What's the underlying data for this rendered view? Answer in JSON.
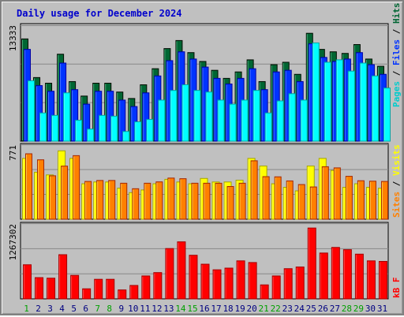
{
  "chart_data": {
    "type": "bar",
    "title": "Daily usage for December 2024",
    "categories": [
      "1",
      "2",
      "3",
      "4",
      "5",
      "6",
      "7",
      "8",
      "9",
      "10",
      "11",
      "12",
      "13",
      "14",
      "15",
      "16",
      "17",
      "18",
      "19",
      "20",
      "21",
      "22",
      "23",
      "24",
      "25",
      "26",
      "27",
      "28",
      "29",
      "30",
      "31"
    ],
    "weekend_days": [
      "1",
      "7",
      "8",
      "14",
      "15",
      "21",
      "22",
      "28",
      "29"
    ],
    "panels": [
      {
        "id": "hits_files_pages",
        "max_label": "13333",
        "ylim": [
          0,
          14400
        ],
        "series": [
          {
            "name": "Hits",
            "color": "#006633",
            "values": [
              12700,
              7900,
              7200,
              10800,
              7400,
              5600,
              7200,
              7200,
              6100,
              5300,
              7000,
              9000,
              11500,
              12500,
              11000,
              9900,
              8800,
              7800,
              8600,
              10100,
              7400,
              9500,
              9800,
              8300,
              13400,
              11400,
              11100,
              10900,
              12000,
              10200,
              9300
            ]
          },
          {
            "name": "Files",
            "color": "#0033ff",
            "values": [
              11400,
              6900,
              6200,
              9700,
              6400,
              4600,
              6200,
              6200,
              5100,
              4300,
              6000,
              8100,
              10000,
              11100,
              10200,
              9200,
              7800,
              7100,
              7800,
              9000,
              6400,
              8600,
              8800,
              7400,
              12100,
              10400,
              9900,
              10200,
              11000,
              9500,
              8300
            ]
          },
          {
            "name": "Pages",
            "color": "#00ffff",
            "values": [
              7500,
              3500,
              3200,
              6000,
              2600,
              1500,
              3200,
              3100,
              1200,
              2400,
              2700,
              5100,
              6300,
              7000,
              6300,
              6100,
              5100,
              4600,
              5100,
              6300,
              3500,
              5000,
              5900,
              5100,
              12200,
              9800,
              10100,
              8700,
              9700,
              8100,
              6600
            ]
          }
        ]
      },
      {
        "id": "visits_sites",
        "max_label": "771",
        "ylim": [
          0,
          836
        ],
        "series": [
          {
            "name": "Visits",
            "color": "#ffff00",
            "values": [
              686,
              530,
              500,
              771,
              686,
              400,
              420,
              420,
              350,
              300,
              330,
              400,
              450,
              420,
              400,
              460,
              420,
              420,
              440,
              686,
              600,
              400,
              360,
              320,
              600,
              686,
              550,
              360,
              400,
              360,
              350
            ]
          },
          {
            "name": "Sites",
            "color": "#ff8000",
            "values": [
              738,
              670,
              490,
              599,
              717,
              426,
              437,
              437,
              406,
              344,
              406,
              421,
              464,
              457,
              406,
              406,
              406,
              369,
              406,
              659,
              480,
              478,
              432,
              391,
              364,
              592,
              579,
              484,
              434,
              429,
              426
            ]
          }
        ]
      },
      {
        "id": "kbf",
        "max_label": "1267302",
        "ylim": [
          0,
          1340000
        ],
        "series": [
          {
            "name": "KBytes",
            "color": "#ff0000",
            "values": [
              610000,
              380000,
              370000,
              790000,
              420000,
              180000,
              350000,
              350000,
              160000,
              240000,
              410000,
              470000,
              900000,
              1020000,
              780000,
              620000,
              520000,
              550000,
              680000,
              650000,
              250000,
              410000,
              540000,
              570000,
              1267302,
              820000,
              920000,
              880000,
              800000,
              680000,
              670000
            ]
          }
        ]
      }
    ],
    "legend_right": [
      "Pages",
      "Files",
      "Hits",
      "Sites",
      "Visits",
      "kB F"
    ],
    "legend_colors": {
      "Pages": "#00cccc",
      "Files": "#0033ff",
      "Hits": "#006633",
      "Sites": "#ff8000",
      "Visits": "#ffff00",
      "kB F": "#ff0000"
    },
    "colors": {
      "frame": "#c0c0c0",
      "title": "#0000cc",
      "weekday_label": "#000080",
      "weekend_label": "#00a000",
      "grid": "#888888"
    }
  }
}
